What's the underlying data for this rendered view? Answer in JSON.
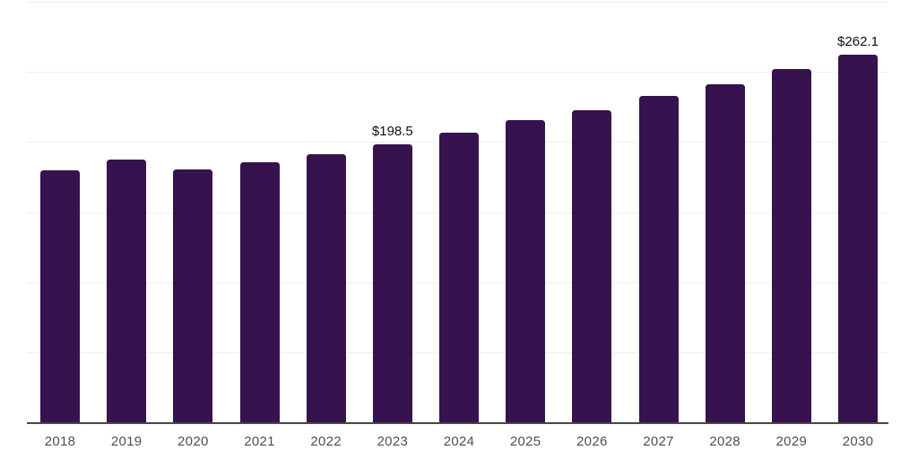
{
  "chart_data": {
    "type": "bar",
    "title": "",
    "xlabel": "",
    "ylabel": "",
    "categories": [
      "2018",
      "2019",
      "2020",
      "2021",
      "2022",
      "2023",
      "2024",
      "2025",
      "2026",
      "2027",
      "2028",
      "2029",
      "2030"
    ],
    "values": [
      179.7,
      187.4,
      180.4,
      185.5,
      191.4,
      198.5,
      206.4,
      215.4,
      222.6,
      232.6,
      241.1,
      252.0,
      262.1
    ],
    "data_labels": [
      null,
      null,
      null,
      null,
      null,
      "$198.5",
      null,
      null,
      null,
      null,
      null,
      null,
      "$262.1"
    ],
    "ylim": [
      0,
      300
    ],
    "gridline_interval": 50,
    "grid": "horizontal",
    "legend": "none",
    "y_tick_labels_shown": false,
    "colors": {
      "bar": "#36124e",
      "gridline": "#efefef",
      "axis_line": "#474747",
      "tick_label": "#4f4f4f",
      "data_label": "#111111",
      "background": "#ffffff"
    }
  }
}
